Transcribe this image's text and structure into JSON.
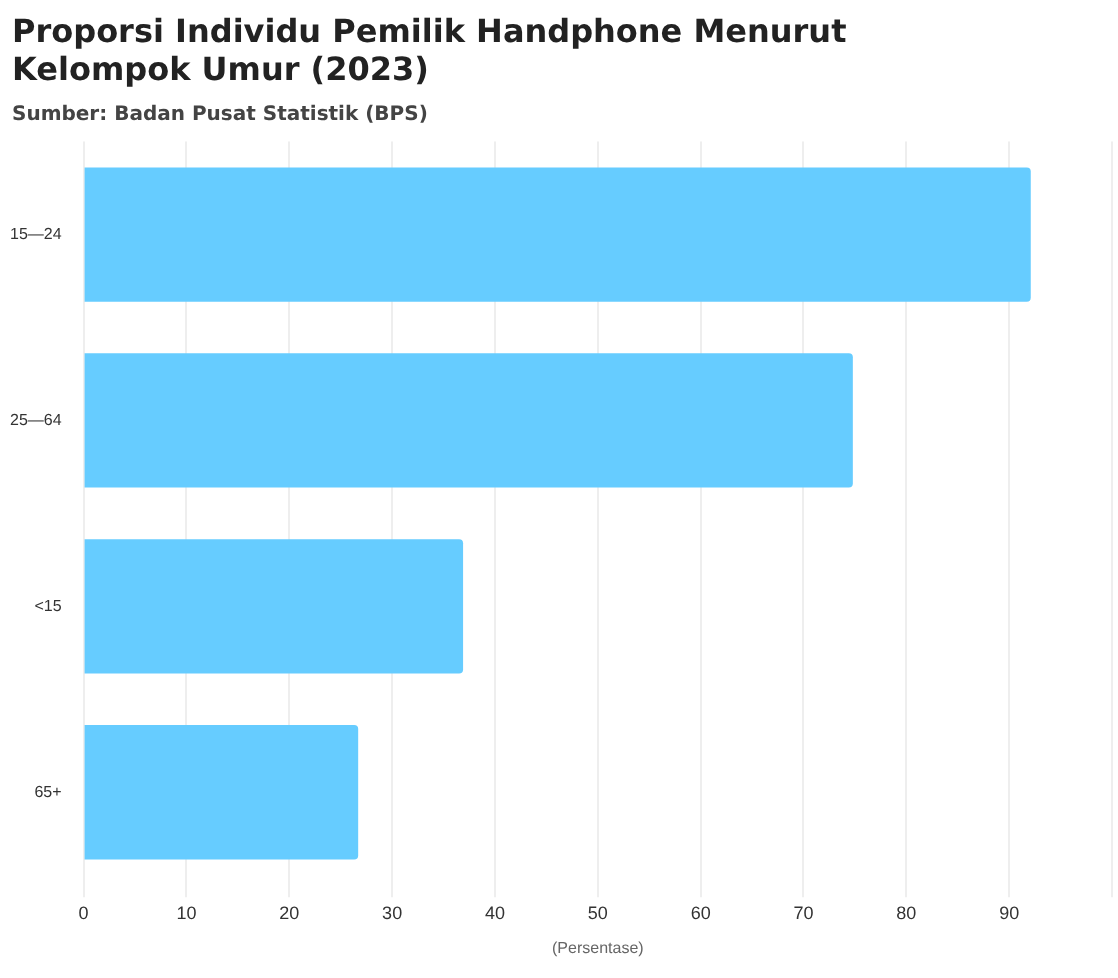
{
  "chart_data": {
    "type": "bar",
    "orientation": "horizontal",
    "title": "Proporsi Individu Pemilik Handphone Menurut Kelompok Umur (2023)",
    "subtitle": "Sumber: Badan Pusat Statistik (BPS)",
    "xlabel": "(Persentase)",
    "categories": [
      "15—24",
      "25—64",
      "<15",
      "65+"
    ],
    "values": [
      92.1,
      74.8,
      36.9,
      26.7
    ],
    "color": "#66ccff",
    "xlim": [
      0,
      100
    ],
    "xticks": [
      0,
      10,
      20,
      30,
      40,
      50,
      60,
      70,
      80,
      90,
      {
        "value": 100,
        "label": null
      }
    ],
    "grid": "x",
    "legend": false
  }
}
